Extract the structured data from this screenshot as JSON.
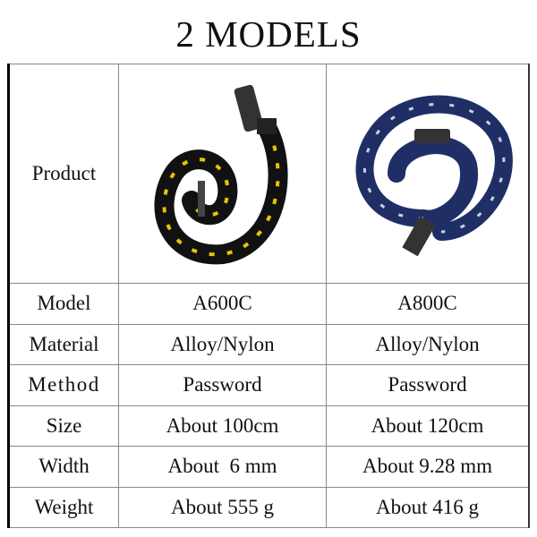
{
  "title": "2 MODELS",
  "table": {
    "product_label": "Product",
    "products": [
      {
        "image": "black-yellow-chain-lock",
        "color": "#111111",
        "accent": "#e8c400"
      },
      {
        "image": "blue-chain-lock",
        "color": "#1f2f66",
        "accent": "#c8d0e8"
      }
    ],
    "rows": [
      {
        "label": "Model",
        "values": [
          "A600C",
          "A800C"
        ]
      },
      {
        "label": "Material",
        "values": [
          "Alloy/Nylon",
          "Alloy/Nylon"
        ]
      },
      {
        "label": "Method",
        "values": [
          "Password",
          "Password"
        ]
      },
      {
        "label": "Size",
        "values": [
          "About 100cm",
          "About 120cm"
        ]
      },
      {
        "label": "Width",
        "values": [
          "About  6 mm",
          "About 9.28 mm"
        ]
      },
      {
        "label": "Weight",
        "values": [
          "About 555 g",
          "About 416 g"
        ]
      }
    ]
  }
}
